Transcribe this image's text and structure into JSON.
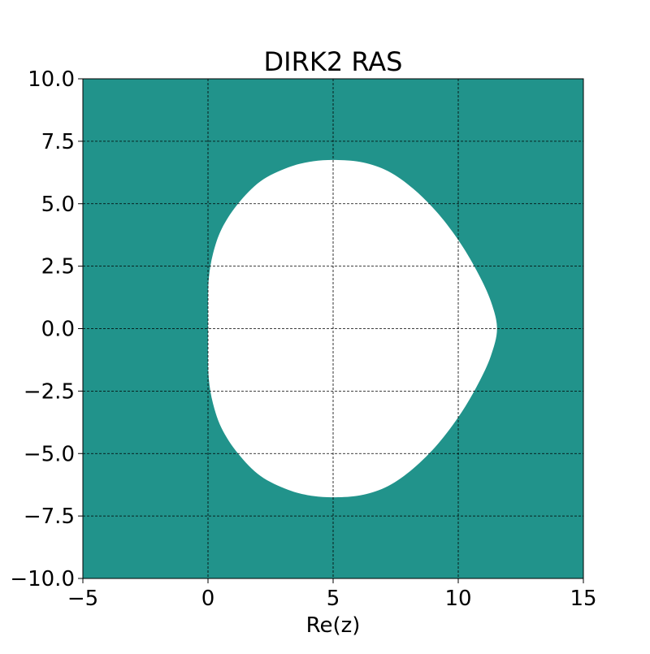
{
  "chart_data": {
    "type": "region",
    "title": "DIRK2 RAS",
    "xlabel": "Re(z)",
    "ylabel": "",
    "xlim": [
      -5,
      15
    ],
    "ylim": [
      -10,
      10
    ],
    "x_ticks": [
      -5,
      0,
      5,
      10,
      15
    ],
    "y_ticks": [
      -10.0,
      -7.5,
      -5.0,
      -2.5,
      0.0,
      2.5,
      5.0,
      7.5,
      10.0
    ],
    "x_tick_labels": [
      "−5",
      "0",
      "5",
      "10",
      "15"
    ],
    "y_tick_labels": [
      "−10.0",
      "−7.5",
      "−5.0",
      "−2.5",
      "0.0",
      "2.5",
      "5.0",
      "7.5",
      "10.0"
    ],
    "grid": true,
    "colors": {
      "stable_region": "#21938b",
      "unstable_region": "#ffffff",
      "grid": "#000000"
    },
    "unstable_boundary": [
      [
        0.0,
        0.0
      ],
      [
        0.0,
        1.0
      ],
      [
        0.03,
        2.0
      ],
      [
        0.2,
        3.0
      ],
      [
        0.55,
        4.0
      ],
      [
        1.2,
        5.0
      ],
      [
        2.1,
        5.9
      ],
      [
        3.2,
        6.45
      ],
      [
        4.2,
        6.7
      ],
      [
        5.2,
        6.75
      ],
      [
        6.2,
        6.65
      ],
      [
        7.2,
        6.3
      ],
      [
        8.2,
        5.6
      ],
      [
        9.2,
        4.6
      ],
      [
        10.1,
        3.4
      ],
      [
        10.8,
        2.2
      ],
      [
        11.3,
        1.1
      ],
      [
        11.55,
        0.0
      ],
      [
        11.3,
        -1.1
      ],
      [
        10.8,
        -2.2
      ],
      [
        10.1,
        -3.4
      ],
      [
        9.2,
        -4.6
      ],
      [
        8.2,
        -5.6
      ],
      [
        7.2,
        -6.3
      ],
      [
        6.2,
        -6.65
      ],
      [
        5.2,
        -6.75
      ],
      [
        4.2,
        -6.7
      ],
      [
        3.2,
        -6.45
      ],
      [
        2.1,
        -5.9
      ],
      [
        1.2,
        -5.0
      ],
      [
        0.55,
        -4.0
      ],
      [
        0.2,
        -3.0
      ],
      [
        0.03,
        -2.0
      ],
      [
        0.0,
        -1.0
      ]
    ]
  }
}
